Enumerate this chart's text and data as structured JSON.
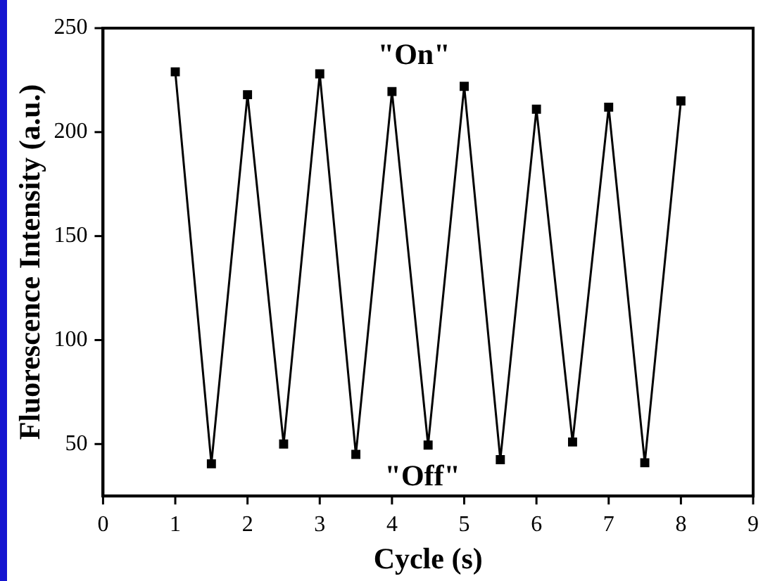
{
  "chart_data": {
    "type": "line",
    "xlabel": "Cycle (s)",
    "ylabel": "Fluorescence Intensity (a.u.)",
    "x": [
      1,
      1.5,
      2,
      2.5,
      3,
      3.5,
      4,
      4.5,
      5,
      5.5,
      6,
      6.5,
      7,
      7.5,
      8
    ],
    "series": [
      {
        "color": "#000000",
        "values": [
          229,
          40.5,
          218,
          50,
          228,
          45,
          219.5,
          49.5,
          222,
          42.5,
          211,
          51,
          212,
          41,
          215
        ]
      }
    ],
    "xlim": [
      0,
      9
    ],
    "xticks": [
      0,
      1,
      2,
      3,
      4,
      5,
      6,
      7,
      8,
      9
    ],
    "ylim": [
      25,
      250
    ],
    "yticks": [
      50,
      100,
      150,
      200,
      250
    ],
    "annotations": [
      "\"On\"",
      "\"Off\""
    ],
    "marker": "square",
    "line_style": "solid",
    "grid": false,
    "legend": false
  }
}
